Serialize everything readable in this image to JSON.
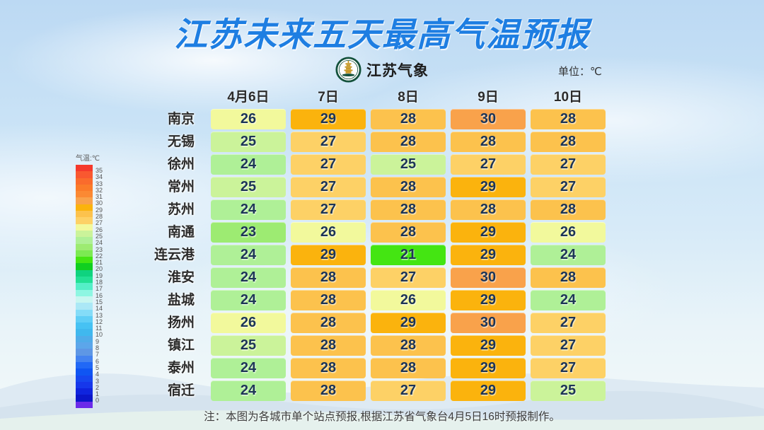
{
  "header": {
    "title": "江苏未来五天最高气温预报",
    "brand": "江苏气象",
    "unit_label": "单位：℃"
  },
  "chart_data": {
    "type": "heatmap",
    "title": "江苏未来五天最高气温预报",
    "unit": "℃",
    "columns": [
      "4月6日",
      "7日",
      "8日",
      "9日",
      "10日"
    ],
    "rows": [
      "南京",
      "无锡",
      "徐州",
      "常州",
      "苏州",
      "南通",
      "连云港",
      "淮安",
      "盐城",
      "扬州",
      "镇江",
      "泰州",
      "宿迁"
    ],
    "values": [
      [
        26,
        29,
        28,
        30,
        28
      ],
      [
        25,
        27,
        28,
        28,
        28
      ],
      [
        24,
        27,
        25,
        27,
        27
      ],
      [
        25,
        27,
        28,
        29,
        27
      ],
      [
        24,
        27,
        28,
        28,
        28
      ],
      [
        23,
        26,
        28,
        29,
        26
      ],
      [
        24,
        29,
        21,
        29,
        24
      ],
      [
        24,
        28,
        27,
        30,
        28
      ],
      [
        24,
        28,
        26,
        29,
        24
      ],
      [
        26,
        28,
        29,
        30,
        27
      ],
      [
        25,
        28,
        28,
        29,
        27
      ],
      [
        24,
        28,
        28,
        29,
        27
      ],
      [
        24,
        28,
        27,
        29,
        25
      ]
    ],
    "colorbar_label": "气温:℃",
    "colorbar_range": [
      0,
      35
    ],
    "legend_position": "left"
  },
  "temp_colors": {
    "21": "#44e512",
    "23": "#9deb72",
    "24": "#aff097",
    "25": "#cbf39a",
    "26": "#f2f99c",
    "27": "#fdd166",
    "28": "#fcc24d",
    "29": "#fbb30d",
    "30": "#f9a24b"
  },
  "legend": {
    "label": "气温:℃",
    "colors": [
      "#f5392c",
      "#f95830",
      "#fa6b2c",
      "#fb7b29",
      "#fb8933",
      "#f9a24b",
      "#fbb30d",
      "#fcc24d",
      "#fdd166",
      "#f2f99c",
      "#cbf39a",
      "#aff097",
      "#9deb72",
      "#7cea52",
      "#44e512",
      "#10cf20",
      "#0fd37f",
      "#22e095",
      "#55efc8",
      "#8ef6e2",
      "#c8f6f0",
      "#abe8f6",
      "#84dcf8",
      "#60cef6",
      "#46c2f3",
      "#40b8ee",
      "#50ace9",
      "#5ca6ea",
      "#5e97e5",
      "#4483f0",
      "#2168f6",
      "#0f55f3",
      "#1647ef",
      "#1637eb",
      "#0f24de",
      "#0b16c9",
      "#6b2ae9"
    ],
    "tick_labels": [
      "35",
      "34",
      "33",
      "32",
      "31",
      "30",
      "29",
      "28",
      "27",
      "26",
      "25",
      "24",
      "23",
      "22",
      "21",
      "20",
      "19",
      "18",
      "17",
      "16",
      "15",
      "14",
      "13",
      "12",
      "11",
      "10",
      "9",
      "8",
      "7",
      "6",
      "5",
      "4",
      "3",
      "2",
      "1",
      "0"
    ]
  },
  "note": {
    "text": "注：本图为各城市单个站点预报,根据江苏省气象台4月5日16时预报制作。"
  },
  "logo_colors": {
    "ring": "#14523c",
    "pagoda": "#c79a2a"
  },
  "accent_colors": {
    "title_blue": "#1e7ee2",
    "number_navy": "#1d3557"
  }
}
